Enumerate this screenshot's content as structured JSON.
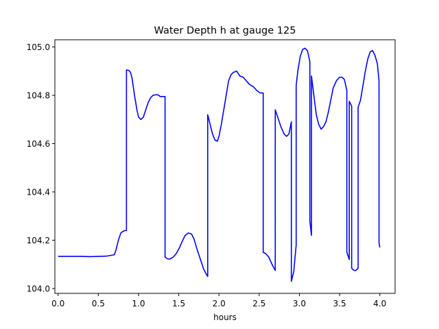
{
  "chart_data": {
    "type": "line",
    "title": "Water Depth h at gauge 125",
    "xlabel": "hours",
    "ylabel": "",
    "xlim": [
      -0.04,
      4.19
    ],
    "ylim": [
      103.98,
      105.03
    ],
    "xticks": [
      0.0,
      0.5,
      1.0,
      1.5,
      2.0,
      2.5,
      3.0,
      3.5,
      4.0
    ],
    "xtick_labels": [
      "0.0",
      "0.5",
      "1.0",
      "1.5",
      "2.0",
      "2.5",
      "3.0",
      "3.5",
      "4.0"
    ],
    "yticks": [
      104.0,
      104.2,
      104.4,
      104.6,
      104.8,
      105.0
    ],
    "ytick_labels": [
      "104.0",
      "104.2",
      "104.4",
      "104.6",
      "104.8",
      "105.0"
    ],
    "grid": false,
    "legend": "none",
    "series": [
      {
        "color": "#0000ff",
        "x": [
          0.0,
          0.1,
          0.2,
          0.3,
          0.4,
          0.5,
          0.6,
          0.7,
          0.72,
          0.75,
          0.78,
          0.8,
          0.83,
          0.85,
          0.85,
          0.88,
          0.9,
          0.92,
          0.95,
          0.98,
          1.0,
          1.03,
          1.06,
          1.09,
          1.12,
          1.15,
          1.18,
          1.21,
          1.24,
          1.27,
          1.3,
          1.33,
          1.33,
          1.36,
          1.39,
          1.43,
          1.47,
          1.51,
          1.55,
          1.58,
          1.62,
          1.66,
          1.69,
          1.73,
          1.77,
          1.81,
          1.85,
          1.86,
          1.86,
          1.89,
          1.92,
          1.95,
          1.98,
          2.0,
          2.03,
          2.06,
          2.09,
          2.12,
          2.15,
          2.18,
          2.22,
          2.26,
          2.3,
          2.34,
          2.38,
          2.43,
          2.47,
          2.51,
          2.55,
          2.55,
          2.58,
          2.62,
          2.66,
          2.7,
          2.7,
          2.73,
          2.77,
          2.81,
          2.84,
          2.87,
          2.9,
          2.9,
          2.93,
          2.96,
          2.96,
          2.98,
          3.01,
          3.04,
          3.07,
          3.1,
          3.13,
          3.13,
          3.15,
          3.15,
          3.18,
          3.21,
          3.24,
          3.27,
          3.3,
          3.33,
          3.36,
          3.39,
          3.42,
          3.46,
          3.5,
          3.53,
          3.56,
          3.59,
          3.59,
          3.62,
          3.62,
          3.65,
          3.65,
          3.66,
          3.68,
          3.7,
          3.72,
          3.73,
          3.73,
          3.76,
          3.79,
          3.82,
          3.85,
          3.88,
          3.91,
          3.94,
          3.97,
          3.99,
          3.99,
          4.0
        ],
        "y": [
          104.133,
          104.133,
          104.133,
          104.133,
          104.132,
          104.133,
          104.134,
          104.14,
          104.16,
          104.2,
          104.23,
          104.235,
          104.24,
          104.24,
          104.905,
          104.903,
          104.895,
          104.87,
          104.8,
          104.74,
          104.71,
          104.7,
          104.71,
          104.74,
          104.77,
          104.79,
          104.8,
          104.802,
          104.802,
          104.795,
          104.795,
          104.795,
          104.13,
          104.123,
          104.122,
          104.13,
          104.145,
          104.17,
          104.2,
          104.22,
          104.23,
          104.225,
          104.205,
          104.16,
          104.12,
          104.08,
          104.055,
          104.05,
          104.72,
          104.68,
          104.64,
          104.615,
          104.61,
          104.63,
          104.68,
          104.74,
          104.8,
          104.86,
          104.885,
          104.895,
          104.9,
          104.88,
          104.875,
          104.86,
          104.845,
          104.835,
          104.82,
          104.81,
          104.81,
          104.15,
          104.145,
          104.13,
          104.1,
          104.075,
          104.74,
          104.71,
          104.67,
          104.64,
          104.63,
          104.64,
          104.69,
          104.03,
          104.07,
          104.18,
          104.84,
          104.9,
          104.96,
          104.99,
          104.995,
          104.985,
          104.94,
          104.28,
          104.22,
          104.88,
          104.8,
          104.72,
          104.68,
          104.66,
          104.67,
          104.69,
          104.73,
          104.78,
          104.83,
          104.86,
          104.875,
          104.875,
          104.865,
          104.82,
          104.15,
          104.12,
          104.775,
          104.755,
          104.085,
          104.08,
          104.075,
          104.075,
          104.08,
          104.085,
          104.75,
          104.78,
          104.84,
          104.9,
          104.95,
          104.98,
          104.985,
          104.965,
          104.93,
          104.86,
          104.19,
          104.17
        ]
      }
    ]
  }
}
